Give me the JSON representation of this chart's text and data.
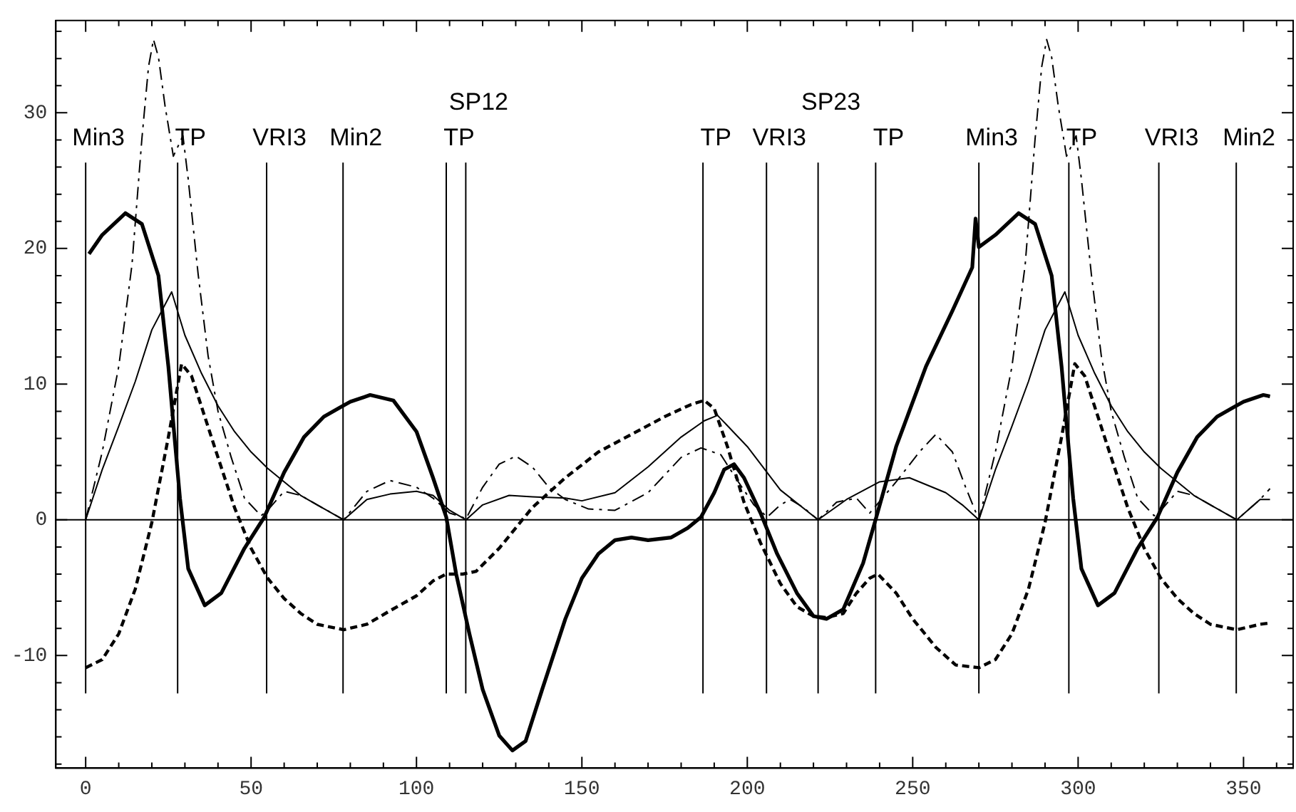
{
  "chart_data": {
    "type": "line",
    "legend": false,
    "grid": false,
    "marker": "none",
    "xlim": [
      -9,
      365
    ],
    "ylim": [
      -18.3,
      36.8
    ],
    "xticks": [
      0,
      {
        "value": 10,
        "label": null
      },
      {
        "value": 20,
        "label": null
      },
      {
        "value": 30,
        "label": null
      },
      {
        "value": 40,
        "label": null
      },
      50,
      {
        "value": 60,
        "label": null
      },
      {
        "value": 70,
        "label": null
      },
      {
        "value": 80,
        "label": null
      },
      {
        "value": 90,
        "label": null
      },
      100,
      {
        "value": 110,
        "label": null
      },
      {
        "value": 120,
        "label": null
      },
      {
        "value": 130,
        "label": null
      },
      {
        "value": 140,
        "label": null
      },
      150,
      {
        "value": 160,
        "label": null
      },
      {
        "value": 170,
        "label": null
      },
      {
        "value": 180,
        "label": null
      },
      {
        "value": 190,
        "label": null
      },
      200,
      {
        "value": 210,
        "label": null
      },
      {
        "value": 220,
        "label": null
      },
      {
        "value": 230,
        "label": null
      },
      {
        "value": 240,
        "label": null
      },
      250,
      {
        "value": 260,
        "label": null
      },
      {
        "value": 270,
        "label": null
      },
      {
        "value": 280,
        "label": null
      },
      {
        "value": 290,
        "label": null
      },
      300,
      {
        "value": 310,
        "label": null
      },
      {
        "value": 320,
        "label": null
      },
      {
        "value": 330,
        "label": null
      },
      {
        "value": 340,
        "label": null
      },
      350,
      {
        "value": 360,
        "label": null
      }
    ],
    "yticks": [
      {
        "value": -18,
        "label": null
      },
      {
        "value": -16,
        "label": null
      },
      {
        "value": -14,
        "label": null
      },
      {
        "value": -12,
        "label": null
      },
      -10,
      {
        "value": -8,
        "label": null
      },
      {
        "value": -6,
        "label": null
      },
      {
        "value": -4,
        "label": null
      },
      {
        "value": -2,
        "label": null
      },
      0,
      {
        "value": 2,
        "label": null
      },
      {
        "value": 4,
        "label": null
      },
      {
        "value": 6,
        "label": null
      },
      {
        "value": 8,
        "label": null
      },
      10,
      {
        "value": 12,
        "label": null
      },
      {
        "value": 14,
        "label": null
      },
      {
        "value": 16,
        "label": null
      },
      {
        "value": 18,
        "label": null
      },
      20,
      {
        "value": 22,
        "label": null
      },
      {
        "value": 24,
        "label": null
      },
      {
        "value": 26,
        "label": null
      },
      {
        "value": 28,
        "label": null
      },
      30,
      {
        "value": 32,
        "label": null
      },
      {
        "value": 34,
        "label": null
      },
      {
        "value": 36,
        "label": null
      }
    ],
    "series": [
      {
        "color": "#000000",
        "line_style": "solid",
        "x": [
          1,
          5,
          12,
          17,
          22,
          25,
          27,
          28.5,
          31,
          36,
          41,
          48,
          54,
          60,
          66,
          72,
          77,
          80,
          86,
          93,
          100,
          105,
          109,
          112,
          116,
          120,
          125,
          129,
          133,
          138,
          145,
          150,
          155,
          160,
          165,
          170,
          177,
          182,
          186,
          190,
          193,
          196,
          199,
          204,
          209,
          215,
          220,
          224,
          229,
          235,
          239,
          245,
          254,
          262,
          268,
          269,
          270,
          275,
          282,
          287,
          292,
          295,
          297,
          298.5,
          301,
          306,
          311,
          318,
          324,
          330,
          336,
          342,
          347,
          350,
          356,
          358
        ],
        "values": [
          19.6,
          21,
          22.6,
          21.8,
          18,
          11.3,
          5.7,
          1.6,
          -3.6,
          -6.3,
          -5.4,
          -2.1,
          0.2,
          3.5,
          6.1,
          7.6,
          8.3,
          8.7,
          9.2,
          8.8,
          6.5,
          3.1,
          0.2,
          -4,
          -8.4,
          -12.5,
          -15.9,
          -17,
          -16.3,
          -12.5,
          -7.3,
          -4.3,
          -2.5,
          -1.5,
          -1.3,
          -1.5,
          -1.3,
          -0.6,
          0.2,
          2,
          3.7,
          4.1,
          3.1,
          0.5,
          -2.5,
          -5.4,
          -7.1,
          -7.3,
          -6.6,
          -3.2,
          0.2,
          5.4,
          11.3,
          15.4,
          18.6,
          22.2,
          20.1,
          21,
          22.6,
          21.8,
          18,
          11.3,
          5.7,
          1.6,
          -3.6,
          -6.3,
          -5.4,
          -2.1,
          0.2,
          3.5,
          6.1,
          7.6,
          8.3,
          8.7,
          9.2,
          9.1
        ]
      },
      {
        "color": "#000000",
        "line_style": "solid",
        "x": [
          0,
          5,
          10,
          15,
          20,
          26,
          30,
          35,
          40,
          45,
          50,
          55,
          60,
          65,
          70,
          78,
          85,
          92,
          100,
          105,
          110,
          115,
          120,
          128,
          135,
          145,
          150,
          160,
          170,
          180,
          187,
          191,
          200,
          210,
          221.4,
          230,
          240,
          249,
          260,
          265,
          270,
          275,
          280,
          285,
          290,
          296,
          300,
          305,
          310,
          315,
          320,
          325,
          330,
          335,
          340,
          348,
          355,
          358
        ],
        "values": [
          0,
          3.7,
          6.9,
          10.2,
          14,
          16.8,
          13.6,
          10.8,
          8.4,
          6.5,
          5,
          3.8,
          2.8,
          1.8,
          1.1,
          0,
          1.5,
          1.9,
          2.1,
          1.8,
          0.7,
          0,
          1.1,
          1.8,
          1.7,
          1.6,
          1.4,
          2,
          3.9,
          6.1,
          7.3,
          7.7,
          5.4,
          2.2,
          0,
          1.5,
          2.8,
          3.1,
          2,
          1.1,
          0,
          3.7,
          6.9,
          10.2,
          14,
          16.8,
          13.6,
          10.8,
          8.4,
          6.5,
          5,
          3.8,
          2.8,
          1.8,
          1.1,
          0,
          1.5,
          1.5
        ]
      },
      {
        "color": "#000000",
        "line_style": "dashdot",
        "x": [
          0,
          5,
          10,
          14,
          17,
          19,
          20.5,
          22,
          24,
          26.5,
          29.4,
          31,
          34,
          37,
          40,
          44,
          48,
          53,
          55,
          60,
          65,
          70,
          78,
          85,
          92,
          100,
          105,
          110,
          115,
          120,
          125,
          130,
          135,
          140,
          145,
          152,
          160,
          170,
          180,
          186,
          192,
          197,
          202,
          206,
          210,
          213,
          217,
          221.4,
          227,
          233,
          237,
          245,
          252,
          257,
          262,
          266,
          270,
          275,
          280,
          284,
          287,
          289,
          290.5,
          292,
          294,
          296.5,
          299.4,
          301,
          304,
          307,
          310,
          314,
          318,
          323,
          325,
          330,
          335,
          340,
          348,
          355,
          358
        ],
        "values": [
          0,
          5,
          11.3,
          18.8,
          28.1,
          33.4,
          35.4,
          34.1,
          30.5,
          26.8,
          28.3,
          25.1,
          18.1,
          12.1,
          8,
          4.6,
          1.6,
          0.3,
          0.7,
          2.1,
          1.8,
          1.1,
          0,
          2.1,
          2.9,
          2.4,
          1.6,
          0.5,
          0.1,
          2.4,
          4.1,
          4.7,
          3.9,
          2.4,
          1.5,
          0.8,
          0.7,
          2,
          4.6,
          5.3,
          4.8,
          2.9,
          1.1,
          0.2,
          1.1,
          1.5,
          0.9,
          0,
          1.3,
          1.6,
          0.5,
          2.8,
          5,
          6.3,
          5,
          2.4,
          0,
          5,
          11.3,
          18.8,
          28.1,
          33.4,
          35.4,
          34.1,
          30.5,
          26.8,
          28.3,
          25.1,
          18.1,
          12.1,
          8,
          4.6,
          1.6,
          0.3,
          0.7,
          2.1,
          1.8,
          1.1,
          0,
          1.5,
          2.3
        ]
      },
      {
        "color": "#000000",
        "line_style": "dashed",
        "x": [
          0,
          5,
          10,
          15,
          20,
          25,
          29,
          32,
          36,
          40,
          45,
          50,
          55,
          60,
          65,
          70,
          78,
          85,
          92,
          100,
          105,
          109,
          114,
          118,
          125,
          135,
          145,
          155,
          165,
          175,
          183,
          187,
          190,
          194,
          199,
          204,
          210,
          215,
          220,
          224,
          229,
          233,
          237,
          239.5,
          245,
          250,
          257,
          263,
          270,
          275,
          280,
          285,
          290,
          295,
          299,
          302,
          306,
          310,
          315,
          320,
          325,
          330,
          335,
          340,
          348,
          355,
          358
        ],
        "values": [
          -10.9,
          -10.3,
          -8.4,
          -5.1,
          -0.2,
          6.1,
          11.5,
          10.6,
          7.6,
          4.6,
          0.9,
          -2.1,
          -4.3,
          -5.8,
          -6.9,
          -7.7,
          -8.1,
          -7.7,
          -6.7,
          -5.6,
          -4.5,
          -4,
          -4,
          -3.8,
          -2.1,
          0.9,
          3.1,
          5,
          6.3,
          7.6,
          8.5,
          8.8,
          8.2,
          5.4,
          1.3,
          -1.7,
          -4.7,
          -6.4,
          -7.1,
          -7.2,
          -6.9,
          -5.4,
          -4.3,
          -4,
          -5.4,
          -7.3,
          -9.4,
          -10.7,
          -10.9,
          -10.3,
          -8.4,
          -5.1,
          -0.2,
          6.1,
          11.5,
          10.6,
          7.6,
          4.6,
          0.9,
          -2.1,
          -4.3,
          -5.8,
          -6.9,
          -7.7,
          -8.1,
          -7.7,
          -7.6
        ]
      }
    ],
    "ref_lines": [
      {
        "axis": "y",
        "value": 0
      },
      {
        "axis": "x",
        "value": 0,
        "label": "Min3"
      },
      {
        "axis": "x",
        "value": 27.8,
        "label": "TP"
      },
      {
        "axis": "x",
        "value": 54.7,
        "label": "VRI3"
      },
      {
        "axis": "x",
        "value": 77.8,
        "label": "Min2"
      },
      {
        "axis": "x",
        "value": 109,
        "label": "TP"
      },
      {
        "axis": "x",
        "value": 114.9,
        "label": "SP12"
      },
      {
        "axis": "x",
        "value": 186.6,
        "label": "TP"
      },
      {
        "axis": "x",
        "value": 205.8,
        "label": "VRI3"
      },
      {
        "axis": "x",
        "value": 221.4,
        "label": "SP23"
      },
      {
        "axis": "x",
        "value": 238.8,
        "label": "TP"
      },
      {
        "axis": "x",
        "value": 270,
        "label": "Min3"
      },
      {
        "axis": "x",
        "value": 297.2,
        "label": "TP"
      },
      {
        "axis": "x",
        "value": 324.4,
        "label": "VRI3"
      },
      {
        "axis": "x",
        "value": 347.8,
        "label": "Min2"
      }
    ]
  }
}
